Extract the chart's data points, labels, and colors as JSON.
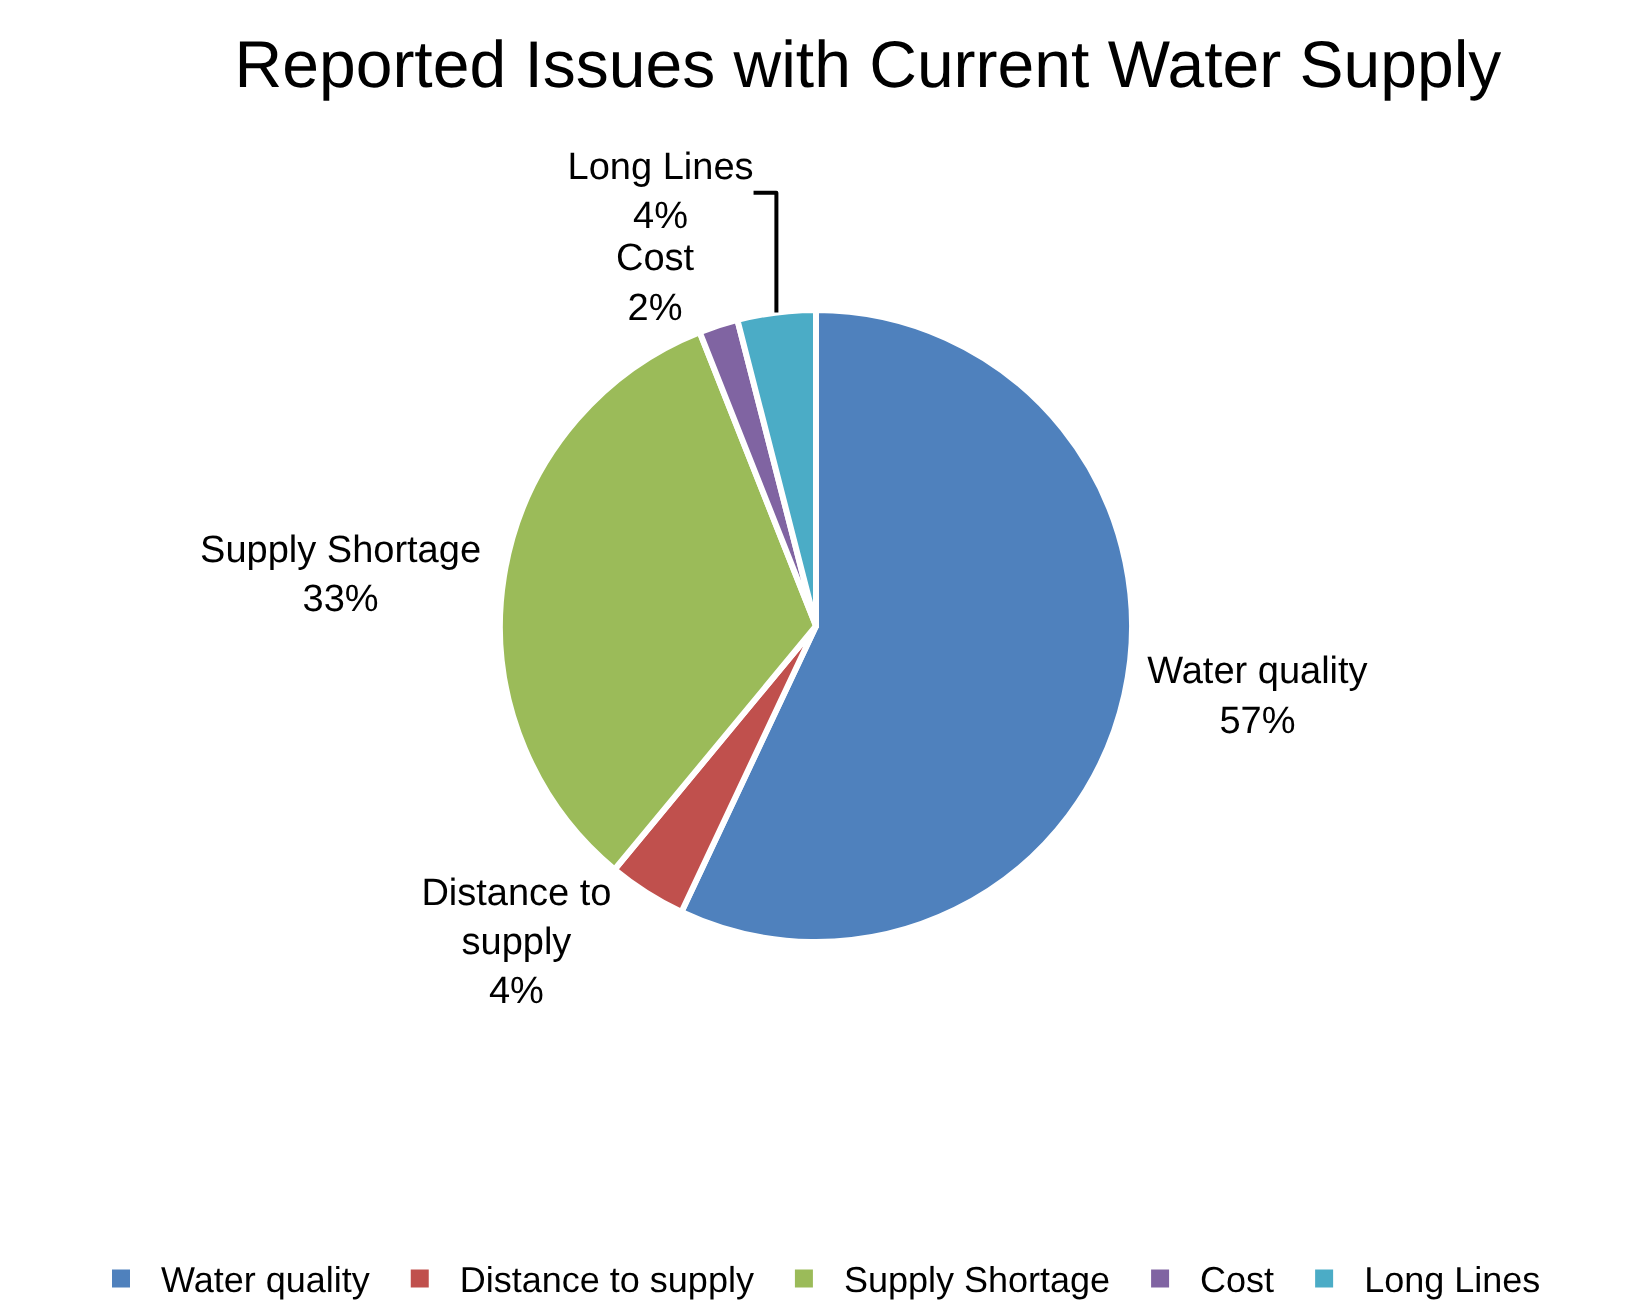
{
  "chart_data": {
    "type": "pie",
    "title": "Reported Issues with Current Water Supply",
    "categories": [
      "Water quality",
      "Distance to supply",
      "Supply Shortage",
      "Cost",
      "Long Lines"
    ],
    "values": [
      57,
      4,
      33,
      2,
      4
    ],
    "colors": [
      "#4f81bd",
      "#c0504d",
      "#9bbb59",
      "#8064a2",
      "#4bacc6"
    ],
    "value_labels": [
      "57%",
      "4%",
      "33%",
      "2%",
      "4%"
    ],
    "legend": "bottom"
  }
}
